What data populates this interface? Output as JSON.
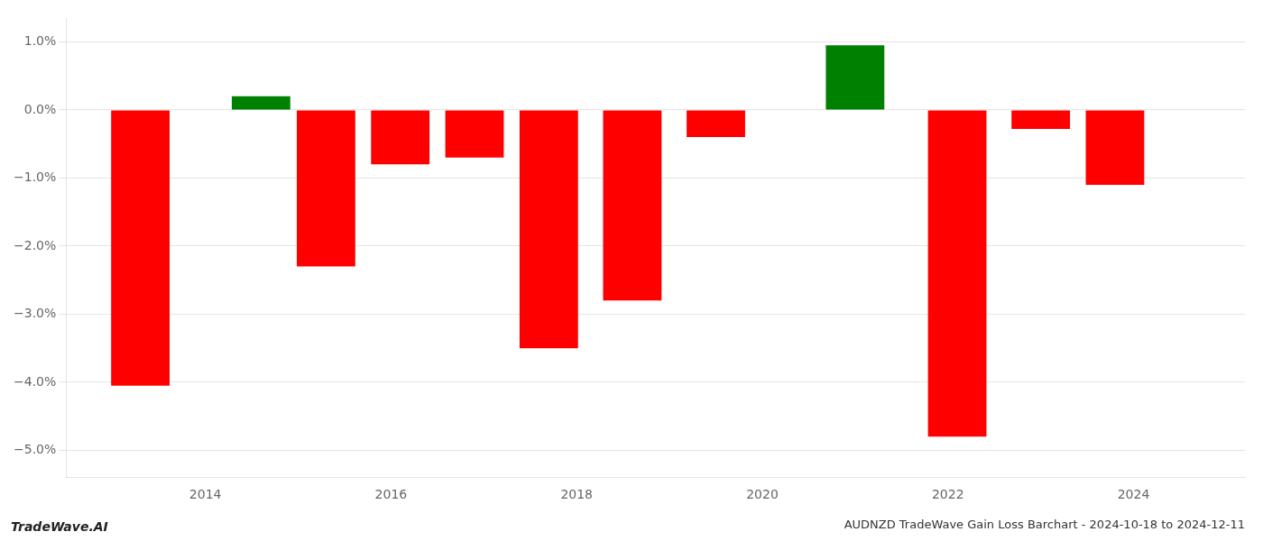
{
  "chart_data": {
    "type": "bar",
    "title": "AUDNZD TradeWave Gain Loss Barchart - 2024-10-18 to 2024-12-11",
    "annotations": [
      "TradeWave.AI"
    ],
    "x": [
      2013.3,
      2014.6,
      2015.3,
      2016.1,
      2016.9,
      2017.7,
      2018.6,
      2019.5,
      2021.0,
      2022.1,
      2023.0,
      2023.8
    ],
    "values": [
      -4.05,
      0.2,
      -2.3,
      -0.8,
      -0.7,
      -3.5,
      -2.8,
      -0.4,
      0.95,
      -4.8,
      -0.28,
      -1.1
    ],
    "colors": [
      "#ff0000",
      "#008000",
      "#ff0000",
      "#ff0000",
      "#ff0000",
      "#ff0000",
      "#ff0000",
      "#ff0000",
      "#008000",
      "#ff0000",
      "#ff0000",
      "#ff0000"
    ],
    "xlim": [
      2012.5,
      2025.2
    ],
    "xticks": [
      2014,
      2016,
      2018,
      2020,
      2022,
      2024
    ],
    "ylim": [
      -5.4,
      1.35
    ],
    "yticks": [
      {
        "value": -5.0,
        "label": "−5.0%"
      },
      {
        "value": -4.0,
        "label": "−4.0%"
      },
      {
        "value": -3.0,
        "label": "−3.0%"
      },
      {
        "value": -2.0,
        "label": "−2.0%"
      },
      {
        "value": -1.0,
        "label": "−1.0%"
      },
      {
        "value": 0.0,
        "label": "0.0%"
      },
      {
        "value": 1.0,
        "label": "1.0%"
      }
    ],
    "grid": "y"
  }
}
